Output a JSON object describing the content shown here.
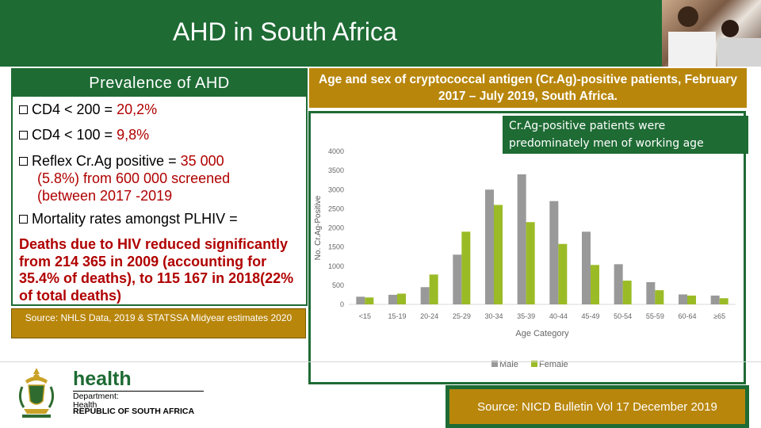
{
  "header": {
    "title": "AHD in South Africa"
  },
  "left_panel": {
    "heading": "Prevalence of AHD",
    "bullets": [
      {
        "label": "CD4 < 200 =",
        "value": "20,2%"
      },
      {
        "label": "CD4 < 100 =",
        "value": "9,8%"
      },
      {
        "label": "Reflex Cr.Ag positive =",
        "value": "35 000",
        "line2": "(5.8%) from 600 000 screened",
        "line3": "(between 2017 -2019"
      },
      {
        "label": "Mortality rates amongst PLHIV ="
      }
    ],
    "mortality_text": "Deaths due to HIV reduced significantly from 214 365 in 2009 (accounting for 35.4% of deaths), to 115 167 in 2018(22% of total deaths)",
    "source": "Source: NHLS Data, 2019 & STATSSA Midyear estimates 2020"
  },
  "right_panel": {
    "title": "Age and sex of cryptococcal antigen (Cr.Ag)-positive patients, February 2017 – July 2019, South Africa.",
    "callout": "Cr.Ag-positive patients were predominately men of working age",
    "source": "Source: NICD Bulletin Vol 17 December 2019"
  },
  "logo": {
    "health": "health",
    "department": "Department:",
    "dept_line2": "Health",
    "republic": "REPUBLIC OF SOUTH AFRICA"
  },
  "colors": {
    "brand_green": "#1e6b34",
    "gold": "#b8860b",
    "male": "#999999",
    "female": "#9bbb26",
    "red_text": "#b00000"
  },
  "chart_data": {
    "type": "bar",
    "title": "",
    "xlabel": "Age Category",
    "ylabel": "No. Cr.Ag-Positive",
    "ylim": [
      0,
      4000
    ],
    "yticks": [
      0,
      500,
      1000,
      1500,
      2000,
      2500,
      3000,
      3500,
      4000
    ],
    "categories": [
      "<15",
      "15-19",
      "20-24",
      "25-29",
      "30-34",
      "35-39",
      "40-44",
      "45-49",
      "50-54",
      "55-59",
      "60-64",
      "≥65"
    ],
    "series": [
      {
        "name": "Male",
        "color": "#999999",
        "values": [
          200,
          250,
          450,
          1300,
          3000,
          3400,
          2700,
          1900,
          1050,
          580,
          260,
          230
        ]
      },
      {
        "name": "Female",
        "color": "#9bbb26",
        "values": [
          180,
          280,
          780,
          1900,
          2600,
          2150,
          1580,
          1030,
          620,
          370,
          230,
          160
        ]
      }
    ],
    "grid": false,
    "legend": "bottom"
  }
}
